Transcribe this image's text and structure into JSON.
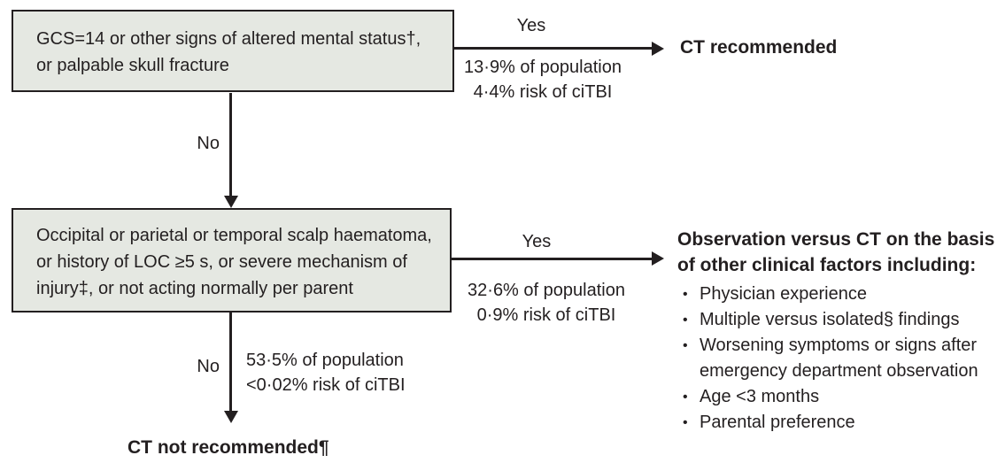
{
  "palette": {
    "background": "#ffffff",
    "box_fill": "#e5e8e2",
    "line_color": "#231f20",
    "text_color": "#231f20"
  },
  "nodes": {
    "criteria1": {
      "lines": [
        "GCS=14 or other signs of altered mental status†,",
        "or palpable skull fracture"
      ]
    },
    "criteria2": {
      "lines": [
        "Occipital or parietal or temporal scalp haematoma,",
        "or history of LOC ≥5 s, or severe mechanism of",
        "injury‡, or not acting normally per parent"
      ]
    },
    "outcome_ct": {
      "label": "CT recommended"
    },
    "outcome_no_ct": {
      "label": "CT not recommended¶"
    },
    "observation": {
      "heading_lines": [
        "Observation versus CT on the basis",
        "of other clinical factors including:"
      ],
      "bullet_glyph": "•",
      "items": [
        "Physician experience",
        "Multiple versus isolated§ findings",
        "Worsening symptoms or signs after emergency department observation",
        "Age <3 months",
        "Parental preference"
      ]
    }
  },
  "branches": {
    "node1_yes": {
      "label": "Yes",
      "stats": [
        "13·9% of population",
        "4·4% risk of ciTBI"
      ]
    },
    "node1_no": {
      "label": "No"
    },
    "node2_yes": {
      "label": "Yes",
      "stats": [
        "32·6% of population",
        "0·9% risk of ciTBI"
      ]
    },
    "node2_no": {
      "label": "No",
      "stats": [
        "53·5% of population",
        "<0·02% risk of ciTBI"
      ]
    }
  }
}
